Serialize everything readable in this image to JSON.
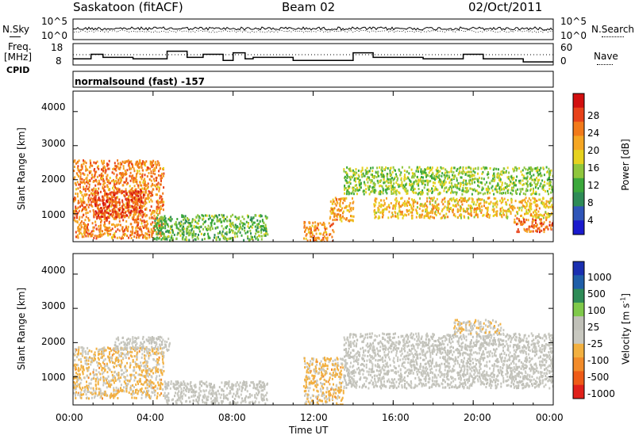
{
  "header": {
    "station": "Saskatoon (fitACF)",
    "beam": "Beam 02",
    "date": "02/Oct/2011"
  },
  "noise_panel": {
    "left_label": "N.Sky",
    "right_label": "N.Search",
    "y_ticks_left": [
      "10^5",
      "10^0"
    ],
    "y_ticks_right": [
      "10^5",
      "10^0"
    ]
  },
  "freq_panel": {
    "left_label_line1": "Freq.",
    "left_label_line2": "[MHz]",
    "right_label": "Nave",
    "y_ticks_left": [
      "18",
      "8"
    ],
    "y_ticks_right": [
      "60",
      "0"
    ]
  },
  "cpid": {
    "label": "CPID",
    "program": "normalsound (fast) -157"
  },
  "power_panel": {
    "ylabel": "Slant Range [km]",
    "y_ticks": [
      "4000",
      "3000",
      "2000",
      "1000"
    ],
    "colorbar_label": "Power [dB]",
    "colorbar_ticks": [
      "28",
      "24",
      "20",
      "16",
      "12",
      "8",
      "4"
    ]
  },
  "velocity_panel": {
    "ylabel": "Slant Range [km]",
    "y_ticks": [
      "4000",
      "3000",
      "2000",
      "1000"
    ],
    "colorbar_label": "Velocity [m s",
    "colorbar_label_sup": "-1",
    "colorbar_label_end": "]",
    "colorbar_ticks": [
      "1000",
      "500",
      "100",
      "25",
      "-25",
      "-100",
      "-500",
      "-1000"
    ]
  },
  "x_axis": {
    "label": "Time UT",
    "ticks": [
      "00:00",
      "04:00",
      "08:00",
      "12:00",
      "16:00",
      "20:00",
      "00:00"
    ]
  },
  "chart_data": {
    "type": "heatmap",
    "xlim_hours": [
      0,
      24
    ],
    "ylim_km": [
      180,
      4600
    ],
    "power_colorbar_db": [
      0,
      32
    ],
    "velocity_colorbar_ms": [
      -1200,
      1200
    ],
    "frequency_mhz": [
      {
        "t0": 0.0,
        "t1": 0.9,
        "f": 10
      },
      {
        "t0": 0.9,
        "t1": 1.5,
        "f": 13
      },
      {
        "t0": 1.5,
        "t1": 3.0,
        "f": 11
      },
      {
        "t0": 3.0,
        "t1": 4.7,
        "f": 10
      },
      {
        "t0": 4.7,
        "t1": 5.7,
        "f": 15
      },
      {
        "t0": 5.7,
        "t1": 6.5,
        "f": 11
      },
      {
        "t0": 6.5,
        "t1": 7.5,
        "f": 13
      },
      {
        "t0": 7.5,
        "t1": 8.0,
        "f": 9
      },
      {
        "t0": 8.0,
        "t1": 8.6,
        "f": 14
      },
      {
        "t0": 8.6,
        "t1": 9.0,
        "f": 10
      },
      {
        "t0": 9.0,
        "t1": 11.0,
        "f": 11
      },
      {
        "t0": 11.0,
        "t1": 14.0,
        "f": 9
      },
      {
        "t0": 14.0,
        "t1": 15.0,
        "f": 14
      },
      {
        "t0": 15.0,
        "t1": 17.5,
        "f": 11
      },
      {
        "t0": 17.5,
        "t1": 19.5,
        "f": 10
      },
      {
        "t0": 19.5,
        "t1": 20.5,
        "f": 13
      },
      {
        "t0": 20.5,
        "t1": 22.5,
        "f": 10
      },
      {
        "t0": 22.5,
        "t1": 24.0,
        "f": 8
      }
    ],
    "data_gap_hours": [
      9.7,
      11.5
    ],
    "power_regions": [
      {
        "t0": 0.0,
        "t1": 4.5,
        "r0": 300,
        "r1": 2600,
        "db": 24
      },
      {
        "t0": 1.0,
        "t1": 3.5,
        "r0": 900,
        "r1": 1700,
        "db": 28
      },
      {
        "t0": 4.0,
        "t1": 9.7,
        "r0": 250,
        "r1": 1000,
        "db": 12
      },
      {
        "t0": 11.5,
        "t1": 13.0,
        "r0": 200,
        "r1": 800,
        "db": 24
      },
      {
        "t0": 12.8,
        "t1": 14.0,
        "r0": 800,
        "r1": 1500,
        "db": 22
      },
      {
        "t0": 13.5,
        "t1": 24.0,
        "r0": 1600,
        "r1": 2400,
        "db": 14
      },
      {
        "t0": 15.0,
        "t1": 24.0,
        "r0": 900,
        "r1": 1500,
        "db": 20
      },
      {
        "t0": 22.0,
        "t1": 24.0,
        "r0": 500,
        "r1": 900,
        "db": 26
      }
    ],
    "velocity_regions": [
      {
        "t0": 0.0,
        "t1": 4.5,
        "r0": 400,
        "r1": 1900,
        "v": -300
      },
      {
        "t0": 2.0,
        "t1": 4.8,
        "r0": 1800,
        "r1": 2200,
        "v": 0
      },
      {
        "t0": 4.5,
        "t1": 9.7,
        "r0": 250,
        "r1": 900,
        "v": 0
      },
      {
        "t0": 11.5,
        "t1": 13.5,
        "r0": 200,
        "r1": 1600,
        "v": -300
      },
      {
        "t0": 13.5,
        "t1": 24.0,
        "r0": 700,
        "r1": 2300,
        "v": 0
      },
      {
        "t0": 19.0,
        "t1": 21.5,
        "r0": 2300,
        "r1": 2700,
        "v": -200
      }
    ]
  }
}
